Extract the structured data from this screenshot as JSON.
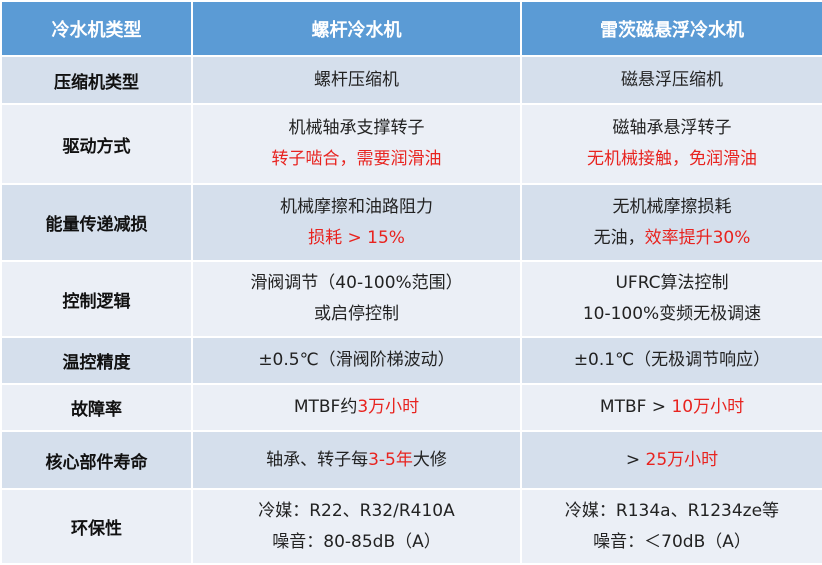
{
  "table": {
    "header": [
      "冷水机类型",
      "螺杆冷水机",
      "雷茨磁悬浮冷水机"
    ],
    "rows": [
      {
        "label": "压缩机类型",
        "cells": [
          [
            [
              {
                "text": "螺杆压缩机"
              }
            ]
          ],
          [
            [
              {
                "text": "磁悬浮压缩机"
              }
            ]
          ]
        ]
      },
      {
        "label": "驱动方式",
        "cells": [
          [
            [
              {
                "text": "机械轴承支撑转子"
              }
            ],
            [
              {
                "text": "转子啮合，需要润滑油",
                "color": "#e8231f"
              }
            ]
          ],
          [
            [
              {
                "text": "磁轴承悬浮转子"
              }
            ],
            [
              {
                "text": "无机械接触，免润滑油",
                "color": "#e8231f"
              }
            ]
          ]
        ]
      },
      {
        "label": "能量传递减损",
        "cells": [
          [
            [
              {
                "text": "机械摩擦和油路阻力"
              }
            ],
            [
              {
                "text": "损耗 > 15%",
                "color": "#e8231f"
              }
            ]
          ],
          [
            [
              {
                "text": "无机械摩擦损耗"
              }
            ],
            [
              {
                "text": "无油，"
              },
              {
                "text": "效率提升30%",
                "color": "#e8231f"
              }
            ]
          ]
        ]
      },
      {
        "label": "控制逻辑",
        "cells": [
          [
            [
              {
                "text": "滑阀调节（40-100%范围）"
              }
            ],
            [
              {
                "text": "或启停控制"
              }
            ]
          ],
          [
            [
              {
                "text": "UFRC算法控制"
              }
            ],
            [
              {
                "text": "10-100%变频无极调速"
              }
            ]
          ]
        ]
      },
      {
        "label": "温控精度",
        "cells": [
          [
            [
              {
                "text": "±0.5℃（滑阀阶梯波动）"
              }
            ]
          ],
          [
            [
              {
                "text": "±0.1℃（无极调节响应）"
              }
            ]
          ]
        ]
      },
      {
        "label": "故障率",
        "cells": [
          [
            [
              {
                "text": "MTBF约"
              },
              {
                "text": "3万小时",
                "color": "#e8231f"
              }
            ]
          ],
          [
            [
              {
                "text": "MTBF > "
              },
              {
                "text": "10万小时",
                "color": "#e8231f"
              }
            ]
          ]
        ]
      },
      {
        "label": "核心部件寿命",
        "cells": [
          [
            [
              {
                "text": "轴承、转子每"
              },
              {
                "text": "3-5年",
                "color": "#e8231f"
              },
              {
                "text": "大修"
              }
            ]
          ],
          [
            [
              {
                "text": "> "
              },
              {
                "text": "25万小时",
                "color": "#e8231f"
              }
            ]
          ]
        ]
      },
      {
        "label": "环保性",
        "cells": [
          [
            [
              {
                "text": "冷媒：R22、R32/R410A"
              }
            ],
            [
              {
                "text": "噪音：80-85dB（A）"
              }
            ]
          ],
          [
            [
              {
                "text": "冷媒：R134a、R1234ze等"
              }
            ],
            [
              {
                "text": "噪音：＜70dB（A）"
              }
            ]
          ]
        ]
      }
    ]
  }
}
